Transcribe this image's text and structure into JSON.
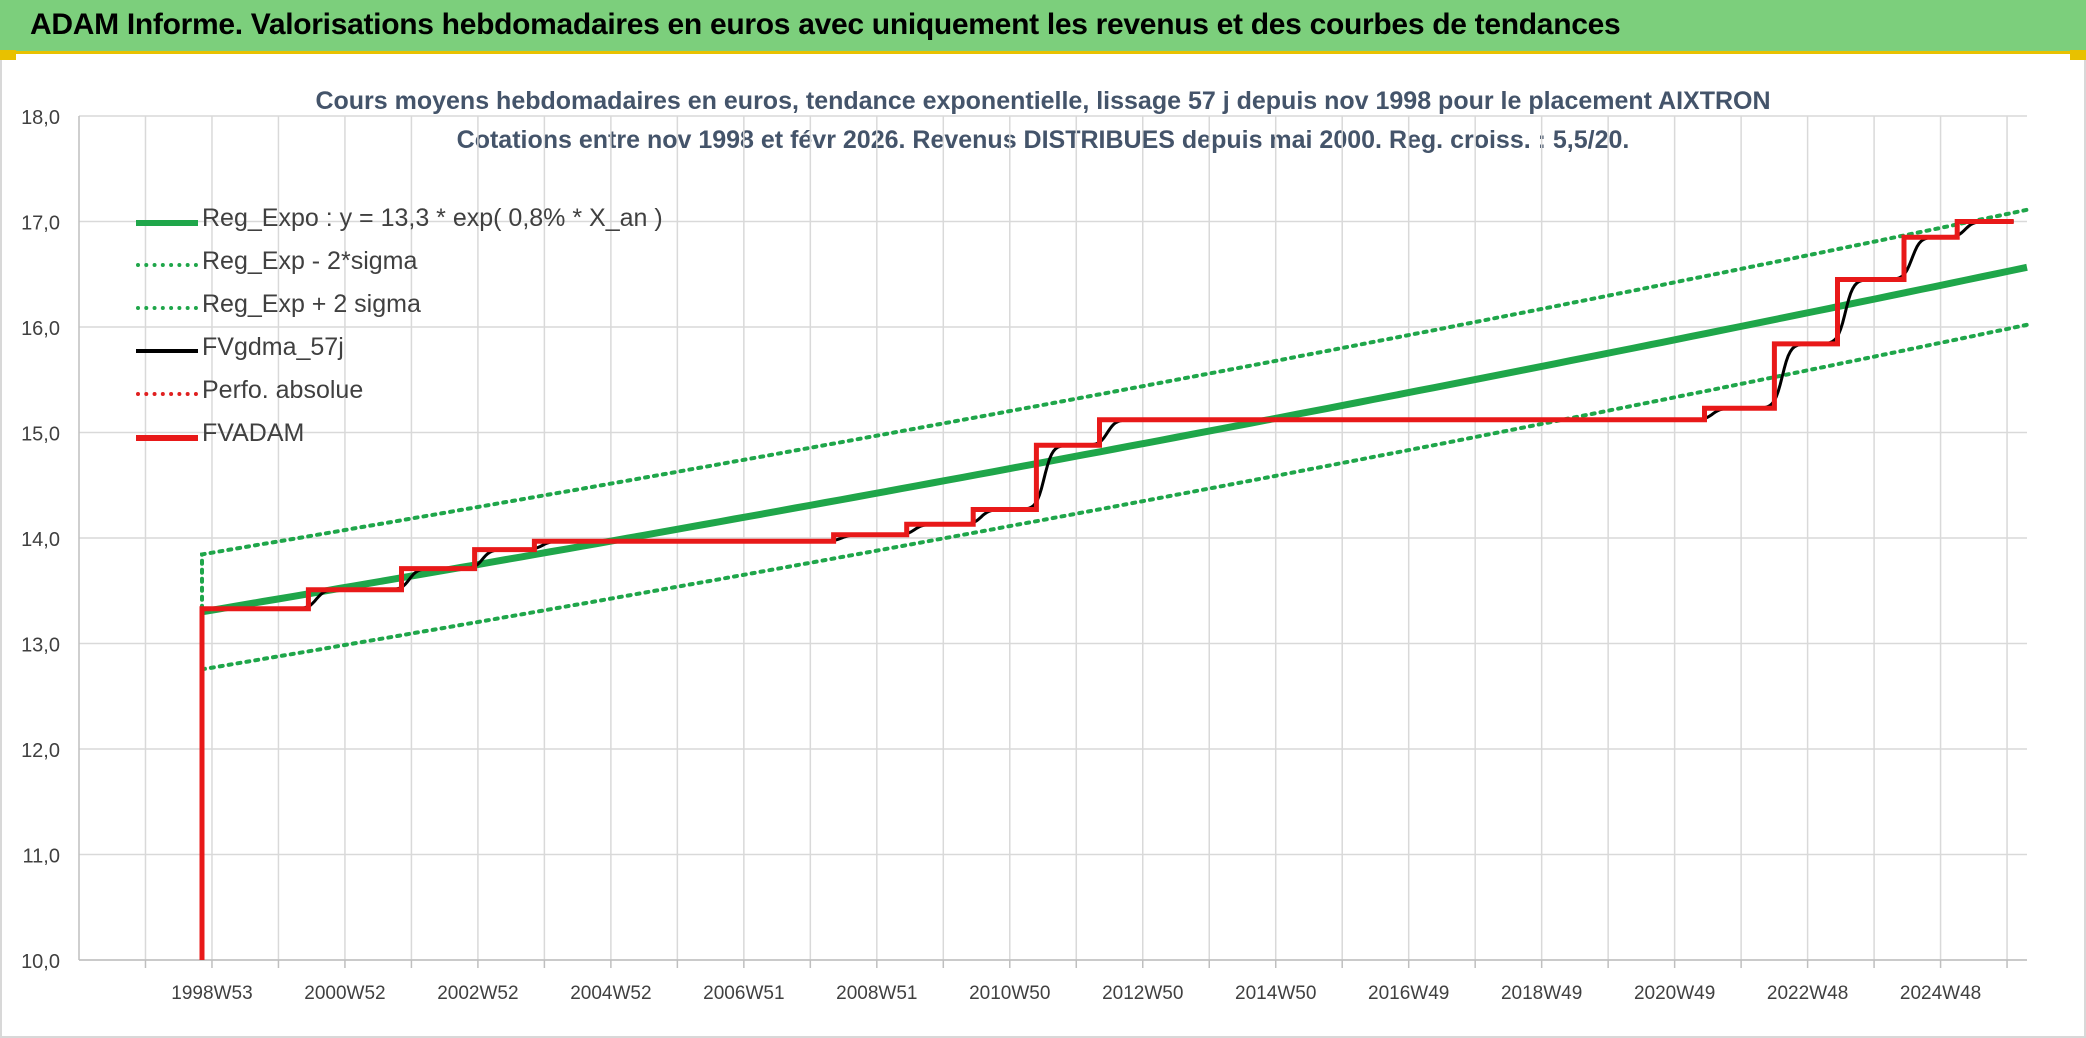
{
  "header": {
    "title": "ADAM Informe. Valorisations hebdomadaires en euros avec uniquement les revenus et des courbes de tendances"
  },
  "colors": {
    "banner": "#7ccf7c",
    "regression": "#1fa64a",
    "sigma": "#1fa64a",
    "smooth": "#000000",
    "perf": "#e02020",
    "fvadam": "#e81919",
    "grid": "#d9d9d9"
  },
  "chart_data": {
    "type": "line",
    "title_line1": "Cours moyens hebdomadaires en euros, tendance exponentielle, lissage 57 j depuis nov 1998 pour le placement AIXTRON",
    "title_line2": "Cotations entre nov 1998 et févr 2026. Revenus DISTRIBUES depuis mai 2000. Reg. croiss. : 5,5/20.",
    "ylim": [
      10,
      18
    ],
    "y_ticks": [
      "10,0",
      "11,0",
      "12,0",
      "13,0",
      "14,0",
      "15,0",
      "16,0",
      "17,0",
      "18,0"
    ],
    "x_range": [
      1997.0,
      2026.3
    ],
    "x_ticks": [
      {
        "label": "1998W53",
        "year": 1999.0
      },
      {
        "label": "2000W52",
        "year": 2001.0
      },
      {
        "label": "2002W52",
        "year": 2003.0
      },
      {
        "label": "2004W52",
        "year": 2005.0
      },
      {
        "label": "2006W51",
        "year": 2007.0
      },
      {
        "label": "2008W51",
        "year": 2009.0
      },
      {
        "label": "2010W50",
        "year": 2011.0
      },
      {
        "label": "2012W50",
        "year": 2013.0
      },
      {
        "label": "2014W50",
        "year": 2015.0
      },
      {
        "label": "2016W49",
        "year": 2017.0
      },
      {
        "label": "2018W49",
        "year": 2019.0
      },
      {
        "label": "2020W49",
        "year": 2021.0
      },
      {
        "label": "2022W48",
        "year": 2023.0
      },
      {
        "label": "2024W48",
        "year": 2025.0
      }
    ],
    "grid": true,
    "legend_position": "top-left",
    "legend": [
      {
        "key": "reg",
        "label": "Reg_Expo : y = 13,3 * exp( 0,8% *  X_an )",
        "style": "thick-solid",
        "color": "#1fa64a"
      },
      {
        "key": "low",
        "label": "Reg_Exp - 2*sigma",
        "style": "dotted",
        "color": "#1fa64a"
      },
      {
        "key": "high",
        "label": "Reg_Exp + 2 sigma",
        "style": "dotted",
        "color": "#1fa64a"
      },
      {
        "key": "smooth",
        "label": "FVgdma_57j",
        "style": "solid",
        "color": "#000000"
      },
      {
        "key": "perf",
        "label": "Perfo. absolue",
        "style": "dotted",
        "color": "#e02020"
      },
      {
        "key": "fvadam",
        "label": "FVADAM",
        "style": "thick-solid",
        "color": "#e81919"
      }
    ],
    "regression": {
      "start_year": 1998.85,
      "end_year": 2026.3,
      "a": 13.3,
      "rate": 0.008,
      "sigma_band": 0.545
    },
    "series": [
      {
        "name": "FVADAM",
        "points": [
          [
            1998.85,
            10.0
          ],
          [
            1998.85,
            13.33
          ],
          [
            2000.45,
            13.33
          ],
          [
            2000.45,
            13.51
          ],
          [
            2001.85,
            13.51
          ],
          [
            2001.85,
            13.71
          ],
          [
            2002.95,
            13.71
          ],
          [
            2002.95,
            13.89
          ],
          [
            2003.85,
            13.89
          ],
          [
            2003.85,
            13.97
          ],
          [
            2008.35,
            13.97
          ],
          [
            2008.35,
            14.03
          ],
          [
            2009.45,
            14.03
          ],
          [
            2009.45,
            14.13
          ],
          [
            2010.45,
            14.13
          ],
          [
            2010.45,
            14.27
          ],
          [
            2011.4,
            14.27
          ],
          [
            2011.4,
            14.88
          ],
          [
            2012.35,
            14.88
          ],
          [
            2012.35,
            15.12
          ],
          [
            2021.45,
            15.12
          ],
          [
            2021.45,
            15.23
          ],
          [
            2022.5,
            15.23
          ],
          [
            2022.5,
            15.84
          ],
          [
            2023.45,
            15.84
          ],
          [
            2023.45,
            16.45
          ],
          [
            2024.45,
            16.45
          ],
          [
            2024.45,
            16.85
          ],
          [
            2025.25,
            16.85
          ],
          [
            2025.25,
            17.0
          ],
          [
            2026.1,
            17.0
          ]
        ]
      }
    ]
  }
}
